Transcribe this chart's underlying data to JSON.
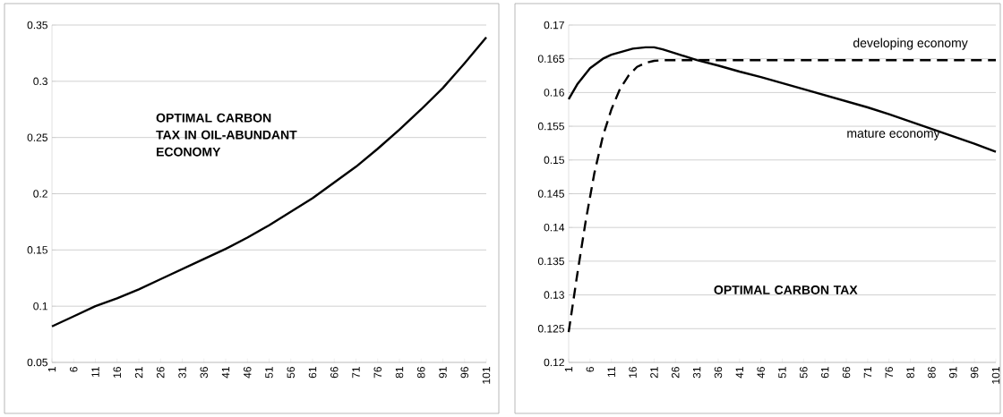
{
  "chart_data": [
    {
      "type": "line",
      "annotations": [
        "OPTIMAL CARBON TAX IN OIL-ABUNDANT ECONOMY"
      ],
      "x": [
        1,
        6,
        11,
        16,
        21,
        26,
        31,
        36,
        41,
        46,
        51,
        56,
        61,
        66,
        71,
        76,
        81,
        86,
        91,
        96,
        101
      ],
      "series": [
        {
          "color": "#000000",
          "line_style": "solid",
          "values": [
            0.082,
            0.091,
            0.1,
            0.107,
            0.115,
            0.124,
            0.133,
            0.142,
            0.151,
            0.161,
            0.172,
            0.184,
            0.196,
            0.21,
            0.224,
            0.24,
            0.257,
            0.275,
            0.294,
            0.316,
            0.339
          ]
        }
      ],
      "xlim": [
        1,
        101
      ],
      "xticks": [
        1,
        6,
        11,
        16,
        21,
        26,
        31,
        36,
        41,
        46,
        51,
        56,
        61,
        66,
        71,
        76,
        81,
        86,
        91,
        96,
        101
      ],
      "ylim": [
        0.05,
        0.35
      ],
      "yticks": [
        0.05,
        0.1,
        0.15,
        0.2,
        0.25,
        0.3,
        0.35
      ],
      "grid": "y"
    },
    {
      "type": "line",
      "annotations": [
        "OPTIMAL CARBON TAX"
      ],
      "series": [
        {
          "name": "developing economy",
          "color": "#000000",
          "line_style": "dashed",
          "x": [
            1,
            3,
            5,
            7,
            9,
            11,
            13,
            15,
            17,
            19,
            21,
            23,
            101
          ],
          "values": [
            0.1245,
            0.133,
            0.141,
            0.148,
            0.1535,
            0.1575,
            0.1605,
            0.1625,
            0.1638,
            0.1644,
            0.1647,
            0.1648,
            0.1648
          ]
        },
        {
          "name": "mature economy",
          "color": "#000000",
          "line_style": "solid",
          "x": [
            1,
            3,
            6,
            9,
            11,
            16,
            19,
            21,
            23,
            26,
            31,
            36,
            41,
            46,
            51,
            56,
            61,
            66,
            71,
            76,
            81,
            86,
            91,
            96,
            101
          ],
          "values": [
            0.159,
            0.1612,
            0.1636,
            0.165,
            0.1656,
            0.1665,
            0.1667,
            0.1667,
            0.1664,
            0.1658,
            0.1648,
            0.164,
            0.1631,
            0.1623,
            0.1614,
            0.1605,
            0.1596,
            0.1587,
            0.1578,
            0.1568,
            0.1557,
            0.1546,
            0.1535,
            0.1524,
            0.1512
          ]
        }
      ],
      "xlim": [
        1,
        101
      ],
      "xticks": [
        1,
        6,
        11,
        16,
        21,
        26,
        31,
        36,
        41,
        46,
        51,
        56,
        61,
        66,
        71,
        76,
        81,
        86,
        91,
        96,
        101
      ],
      "ylim": [
        0.12,
        0.17
      ],
      "yticks": [
        0.12,
        0.125,
        0.13,
        0.135,
        0.14,
        0.145,
        0.15,
        0.155,
        0.16,
        0.165,
        0.17
      ],
      "grid": "y"
    }
  ]
}
